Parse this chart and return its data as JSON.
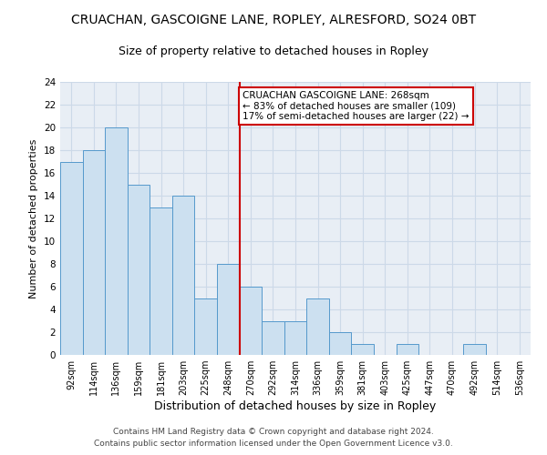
{
  "title": "CRUACHAN, GASCOIGNE LANE, ROPLEY, ALRESFORD, SO24 0BT",
  "subtitle": "Size of property relative to detached houses in Ropley",
  "xlabel": "Distribution of detached houses by size in Ropley",
  "ylabel": "Number of detached properties",
  "bar_labels": [
    "92sqm",
    "114sqm",
    "136sqm",
    "159sqm",
    "181sqm",
    "203sqm",
    "225sqm",
    "248sqm",
    "270sqm",
    "292sqm",
    "314sqm",
    "336sqm",
    "359sqm",
    "381sqm",
    "403sqm",
    "425sqm",
    "447sqm",
    "470sqm",
    "492sqm",
    "514sqm",
    "536sqm"
  ],
  "bar_values": [
    17,
    18,
    20,
    15,
    13,
    14,
    5,
    8,
    6,
    3,
    3,
    5,
    2,
    1,
    0,
    1,
    0,
    0,
    1,
    0,
    0
  ],
  "bar_color": "#cce0f0",
  "bar_edgecolor": "#5599cc",
  "highlight_index": 8,
  "highlight_color": "#cc0000",
  "annotation_line1": "CRUACHAN GASCOIGNE LANE: 268sqm",
  "annotation_line2": "← 83% of detached houses are smaller (109)",
  "annotation_line3": "17% of semi-detached houses are larger (22) →",
  "ylim": [
    0,
    24
  ],
  "yticks": [
    0,
    2,
    4,
    6,
    8,
    10,
    12,
    14,
    16,
    18,
    20,
    22,
    24
  ],
  "grid_color": "#ccd9e8",
  "background_color": "#e8eef5",
  "footer_line1": "Contains HM Land Registry data © Crown copyright and database right 2024.",
  "footer_line2": "Contains public sector information licensed under the Open Government Licence v3.0.",
  "title_fontsize": 10,
  "subtitle_fontsize": 9,
  "xlabel_fontsize": 9,
  "ylabel_fontsize": 8,
  "tick_fontsize": 7,
  "annotation_fontsize": 7.5,
  "footer_fontsize": 6.5
}
